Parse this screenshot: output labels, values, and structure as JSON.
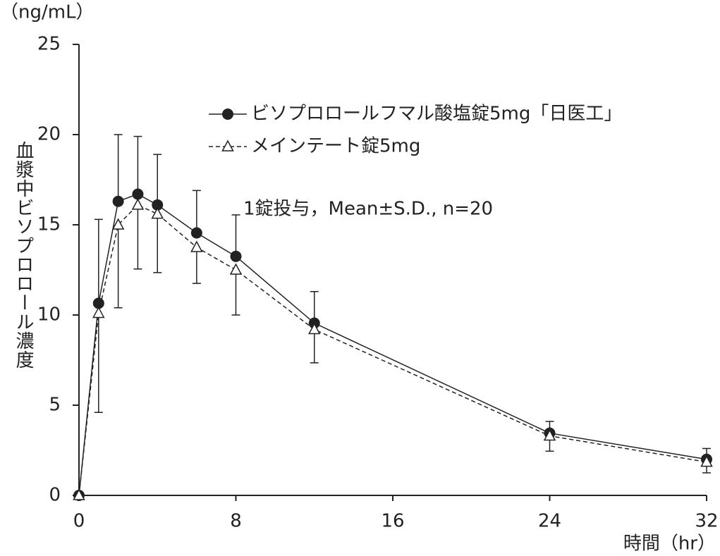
{
  "chart_data": {
    "type": "line",
    "y_unit": "（ng/mL）",
    "y_label": "血漿中ビソプロロール濃度",
    "x_label": "時間（hr）",
    "annotation": "1錠投与，Mean±S.D., n=20",
    "x": [
      0,
      1,
      2,
      3,
      4,
      6,
      8,
      12,
      24,
      32
    ],
    "series": [
      {
        "name": "ビソプロロールフマル酸塩錠5mg「日医工」",
        "color": "#222222",
        "marker": "circle",
        "dash": false,
        "error_direction": "up",
        "values": [
          0,
          10.65,
          16.3,
          16.7,
          16.1,
          14.55,
          13.25,
          9.55,
          3.45,
          2.0
        ],
        "errors": [
          null,
          4.65,
          3.7,
          3.2,
          2.8,
          2.35,
          2.3,
          1.75,
          0.65,
          0.6
        ]
      },
      {
        "name": "メインテート錠5mg",
        "color": "#222222",
        "marker": "triangle",
        "dash": true,
        "error_direction": "down",
        "values": [
          0,
          10.1,
          15.0,
          16.1,
          15.6,
          13.75,
          12.5,
          9.2,
          3.3,
          1.85
        ],
        "errors": [
          null,
          5.5,
          4.6,
          3.55,
          3.25,
          2.0,
          2.5,
          1.85,
          0.85,
          0.6
        ]
      }
    ],
    "xlim": [
      0,
      32
    ],
    "xticks": [
      0,
      8,
      16,
      24,
      32
    ],
    "ylim": [
      0,
      25
    ],
    "yticks": [
      0,
      5,
      10,
      15,
      20,
      25
    ]
  }
}
